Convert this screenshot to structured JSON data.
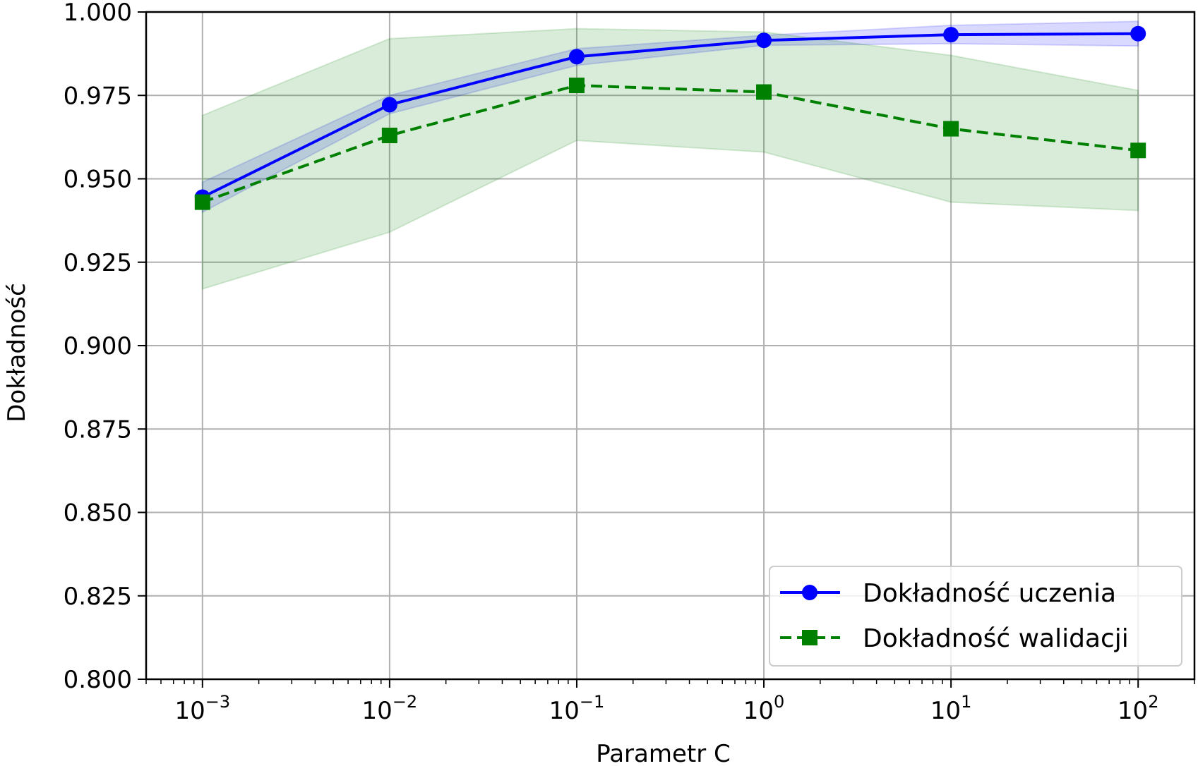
{
  "chart_data": {
    "type": "line",
    "xlabel": "Parametr C",
    "ylabel": "Dokładność",
    "xscale": "log",
    "xlim": [
      0.0005,
      200
    ],
    "ylim": [
      0.8,
      1.0
    ],
    "grid": true,
    "legend_position": "lower-right",
    "x": [
      0.001,
      0.01,
      0.1,
      1,
      10,
      100
    ],
    "x_tick_labels": [
      {
        "base": "10",
        "exp": "−3"
      },
      {
        "base": "10",
        "exp": "−2"
      },
      {
        "base": "10",
        "exp": "−1"
      },
      {
        "base": "10",
        "exp": "0"
      },
      {
        "base": "10",
        "exp": "1"
      },
      {
        "base": "10",
        "exp": "2"
      }
    ],
    "y_ticks": [
      0.8,
      0.825,
      0.85,
      0.875,
      0.9,
      0.925,
      0.95,
      0.975,
      1.0
    ],
    "y_tick_labels": [
      "0.800",
      "0.825",
      "0.850",
      "0.875",
      "0.900",
      "0.925",
      "0.950",
      "0.975",
      "1.000"
    ],
    "series": [
      {
        "name": "Dokładność uczenia",
        "color": "#0000ff",
        "marker": "circle",
        "linestyle": "solid",
        "values": [
          0.9445,
          0.9722,
          0.9866,
          0.9915,
          0.9932,
          0.9935
        ],
        "band_lower": [
          0.94,
          0.9695,
          0.984,
          0.99,
          0.9905,
          0.9898
        ],
        "band_upper": [
          0.949,
          0.975,
          0.989,
          0.993,
          0.996,
          0.9972
        ],
        "band_color": "#0000ff"
      },
      {
        "name": "Dokładność walidacji",
        "color": "#008000",
        "marker": "square",
        "linestyle": "dashed",
        "values": [
          0.943,
          0.963,
          0.978,
          0.976,
          0.965,
          0.9585
        ],
        "band_lower": [
          0.917,
          0.934,
          0.9615,
          0.958,
          0.943,
          0.9405
        ],
        "band_upper": [
          0.969,
          0.992,
          0.995,
          0.994,
          0.987,
          0.9765
        ],
        "band_color": "#008000"
      }
    ]
  }
}
